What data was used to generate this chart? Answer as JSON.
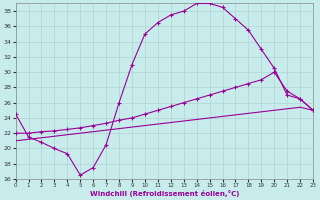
{
  "xlabel": "Windchill (Refroidissement éolien,°C)",
  "bg_color": "#c8ecec",
  "line_color": "#990099",
  "xlim": [
    0,
    23
  ],
  "ylim": [
    16,
    39
  ],
  "yticks": [
    16,
    18,
    20,
    22,
    24,
    26,
    28,
    30,
    32,
    34,
    36,
    38
  ],
  "xticks": [
    0,
    1,
    2,
    3,
    4,
    5,
    6,
    7,
    8,
    9,
    10,
    11,
    12,
    13,
    14,
    15,
    16,
    17,
    18,
    19,
    20,
    21,
    22,
    23
  ],
  "curve1_x": [
    0,
    1,
    2,
    3,
    4,
    5,
    6,
    7,
    8,
    9,
    10,
    11,
    12,
    13,
    14,
    15,
    16,
    17,
    18,
    19,
    20,
    21,
    22,
    23
  ],
  "curve1_y": [
    24.5,
    21.5,
    20.8,
    20.0,
    19.3,
    16.5,
    17.5,
    20.5,
    26.0,
    31.0,
    35.0,
    36.5,
    37.5,
    38.0,
    39.0,
    39.0,
    38.5,
    37.0,
    35.5,
    33.0,
    30.5,
    27.0,
    26.5,
    25.0
  ],
  "curve2_x": [
    0,
    1,
    2,
    3,
    4,
    5,
    6,
    7,
    8,
    9,
    10,
    11,
    12,
    13,
    14,
    15,
    16,
    17,
    18,
    19,
    20,
    21,
    22,
    23
  ],
  "curve2_y": [
    22.0,
    22.0,
    22.2,
    22.3,
    22.5,
    22.7,
    23.0,
    23.3,
    23.7,
    24.0,
    24.5,
    25.0,
    25.5,
    26.0,
    26.5,
    27.0,
    27.5,
    28.0,
    28.5,
    29.0,
    30.0,
    27.5,
    26.5,
    25.0
  ],
  "curve3_x": [
    0,
    1,
    2,
    3,
    4,
    5,
    6,
    7,
    8,
    9,
    10,
    11,
    12,
    13,
    14,
    15,
    16,
    17,
    18,
    19,
    20,
    21,
    22,
    23
  ],
  "curve3_y": [
    21.0,
    21.2,
    21.4,
    21.6,
    21.8,
    22.0,
    22.2,
    22.4,
    22.6,
    22.8,
    23.0,
    23.2,
    23.4,
    23.6,
    23.8,
    24.0,
    24.2,
    24.4,
    24.6,
    24.8,
    25.0,
    25.2,
    25.4,
    25.0
  ]
}
